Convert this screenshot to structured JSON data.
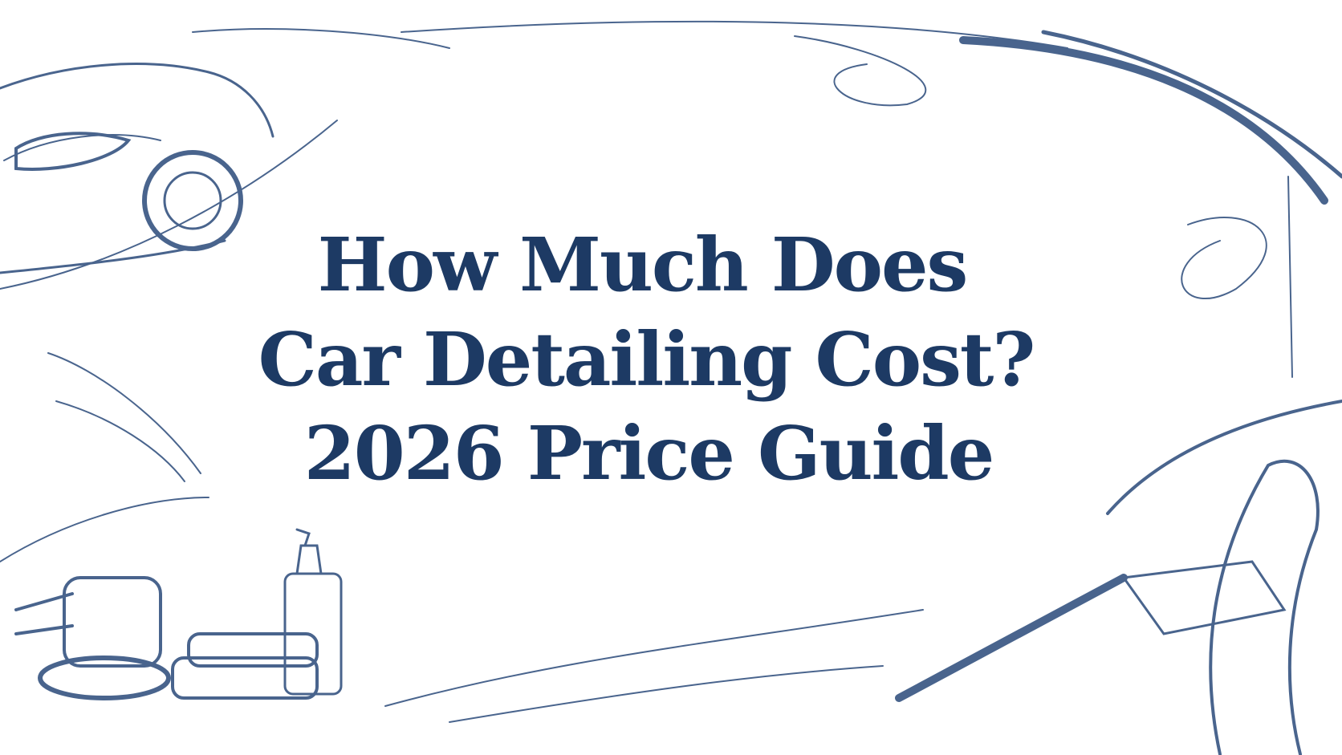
{
  "header": {
    "title_lines": [
      "How Much Does",
      "Car Detailing Cost?",
      "2026 Price Guide"
    ]
  }
}
